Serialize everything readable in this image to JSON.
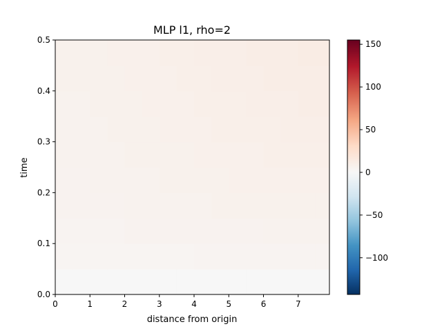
{
  "chart_data": {
    "type": "heatmap",
    "title": "MLP l1, rho=2",
    "xlabel": "distance from origin",
    "ylabel": "time",
    "xlim": [
      0,
      7.9
    ],
    "ylim": [
      0,
      0.5
    ],
    "xticks": [
      "0",
      "1",
      "2",
      "3",
      "4",
      "5",
      "6",
      "7"
    ],
    "yticks": [
      "0.0",
      "0.1",
      "0.2",
      "0.3",
      "0.4",
      "0.5"
    ],
    "colorbar": {
      "colormap": "RdBu_r",
      "vmin": -143,
      "vmax": 155,
      "ticks": [
        "−100",
        "−50",
        "0",
        "50",
        "100",
        "150"
      ],
      "tick_values": [
        -100,
        -50,
        0,
        50,
        100,
        150
      ]
    },
    "time_rows": [
      0.0,
      0.05,
      0.1,
      0.15,
      0.2,
      0.25,
      0.3,
      0.35,
      0.4,
      0.45
    ],
    "distance_cols": [
      0.0,
      0.5,
      1.0,
      1.5,
      2.0,
      2.5,
      3.0,
      3.5,
      4.0,
      4.5,
      5.0,
      5.5,
      6.0,
      6.5,
      7.0,
      7.5
    ],
    "values": [
      [
        0,
        0,
        0,
        0,
        0,
        0,
        0,
        0,
        0,
        0,
        0,
        0,
        0,
        0,
        0,
        0
      ],
      [
        3,
        3,
        3,
        3,
        3,
        3,
        3,
        3,
        4,
        4,
        4,
        4,
        4,
        4,
        4,
        4
      ],
      [
        4,
        4,
        4,
        4,
        5,
        5,
        5,
        5,
        5,
        5,
        5,
        5,
        6,
        6,
        6,
        6
      ],
      [
        5,
        5,
        5,
        5,
        6,
        6,
        6,
        6,
        6,
        7,
        7,
        7,
        7,
        7,
        7,
        7
      ],
      [
        5,
        5,
        6,
        6,
        6,
        6,
        7,
        7,
        7,
        7,
        8,
        8,
        8,
        8,
        8,
        8
      ],
      [
        6,
        6,
        6,
        6,
        7,
        7,
        7,
        7,
        8,
        8,
        8,
        8,
        9,
        9,
        9,
        9
      ],
      [
        6,
        6,
        6,
        7,
        7,
        7,
        8,
        8,
        8,
        9,
        9,
        9,
        9,
        10,
        10,
        10
      ],
      [
        6,
        6,
        7,
        7,
        7,
        8,
        8,
        8,
        9,
        9,
        9,
        10,
        10,
        10,
        11,
        11
      ],
      [
        7,
        7,
        7,
        7,
        8,
        8,
        8,
        9,
        9,
        10,
        10,
        10,
        11,
        11,
        11,
        11
      ],
      [
        7,
        7,
        7,
        8,
        8,
        8,
        9,
        9,
        10,
        10,
        10,
        11,
        11,
        11,
        12,
        12
      ]
    ]
  }
}
